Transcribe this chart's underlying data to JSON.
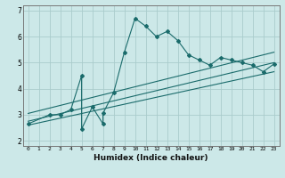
{
  "xlabel": "Humidex (Indice chaleur)",
  "bg_color": "#cce8e8",
  "line_color": "#1a6b6b",
  "grid_color": "#aacccc",
  "xlim": [
    -0.5,
    23.5
  ],
  "ylim": [
    1.8,
    7.2
  ],
  "yticks": [
    2,
    3,
    4,
    5,
    6,
    7
  ],
  "xticks": [
    0,
    1,
    2,
    3,
    4,
    5,
    6,
    7,
    8,
    9,
    10,
    11,
    12,
    13,
    14,
    15,
    16,
    17,
    18,
    19,
    20,
    21,
    22,
    23
  ],
  "s1x": [
    0,
    2,
    3,
    4,
    5,
    5,
    6,
    7,
    7,
    8,
    9,
    10,
    11,
    12,
    13,
    14,
    15,
    16,
    17,
    18,
    19,
    20,
    21,
    22,
    23
  ],
  "s1y": [
    2.65,
    3.0,
    3.0,
    3.2,
    4.5,
    2.45,
    3.3,
    2.65,
    3.05,
    3.85,
    5.4,
    6.7,
    6.4,
    6.0,
    6.2,
    5.85,
    5.3,
    5.1,
    4.9,
    5.2,
    5.1,
    5.0,
    4.9,
    4.65,
    4.95
  ],
  "line2": [
    [
      0,
      23
    ],
    [
      2.6,
      4.65
    ]
  ],
  "line3": [
    [
      0,
      23
    ],
    [
      2.75,
      5.0
    ]
  ],
  "line4": [
    [
      0,
      23
    ],
    [
      3.05,
      5.4
    ]
  ]
}
